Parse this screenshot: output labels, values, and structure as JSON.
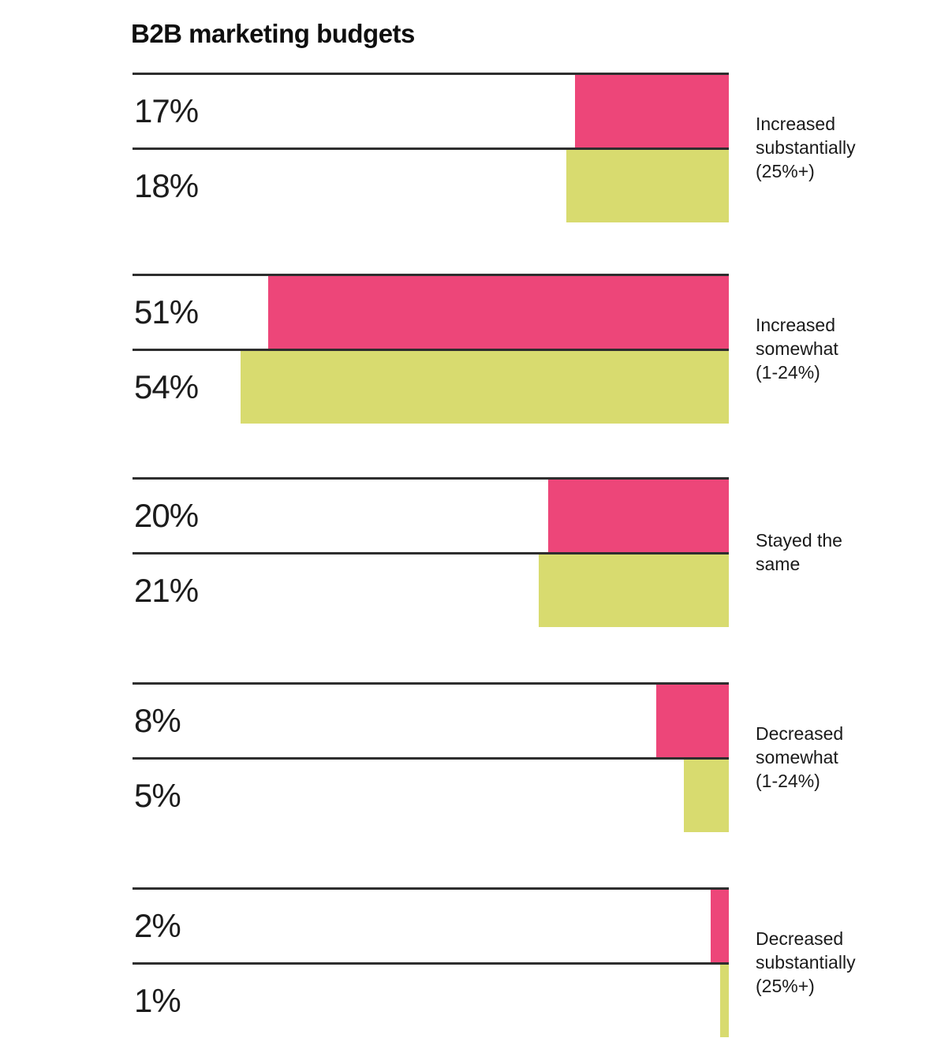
{
  "page": {
    "title": "B2B marketing budgets",
    "background": "#ffffff"
  },
  "colors": {
    "bar_pink": "#ED4679",
    "bar_yellow_green": "#D8DB6F",
    "axis_line": "#2e2e2e",
    "text": "#1a1a1a"
  },
  "chart_data": {
    "type": "bar",
    "orientation": "horizontal",
    "title": "B2B marketing budgets",
    "value_unit": "%",
    "axis_max_percent": 66,
    "grid": "off",
    "legend": "none",
    "category_labels_position": "right",
    "bars_alignment": "right",
    "categories": [
      "Increased substantially (25%+)",
      "Increased somewhat (1-24%)",
      "Stayed the same",
      "Decreased somewhat (1-24%)",
      "Decreased substantially (25%+)"
    ],
    "series": [
      {
        "name": "pink-series",
        "color": "#ED4679",
        "values": [
          17,
          51,
          20,
          8,
          2
        ]
      },
      {
        "name": "yellow-green-series",
        "color": "#D8DB6F",
        "values": [
          18,
          54,
          21,
          5,
          1
        ]
      }
    ],
    "groups": [
      {
        "label": "Increased\nsubstantially\n(25%+)",
        "pink": {
          "value": 17,
          "display": "17%"
        },
        "yellow": {
          "value": 18,
          "display": "18%"
        }
      },
      {
        "label": "Increased\nsomewhat\n(1-24%)",
        "pink": {
          "value": 51,
          "display": "51%"
        },
        "yellow": {
          "value": 54,
          "display": "54%"
        }
      },
      {
        "label": "Stayed the\nsame",
        "pink": {
          "value": 20,
          "display": "20%"
        },
        "yellow": {
          "value": 21,
          "display": "21%"
        }
      },
      {
        "label": "Decreased\nsomewhat\n(1-24%)",
        "pink": {
          "value": 8,
          "display": "8%"
        },
        "yellow": {
          "value": 5,
          "display": "5%"
        }
      },
      {
        "label": "Decreased\nsubstantially\n(25%+)",
        "pink": {
          "value": 2,
          "display": "2%"
        },
        "yellow": {
          "value": 1,
          "display": "1%"
        }
      }
    ]
  }
}
